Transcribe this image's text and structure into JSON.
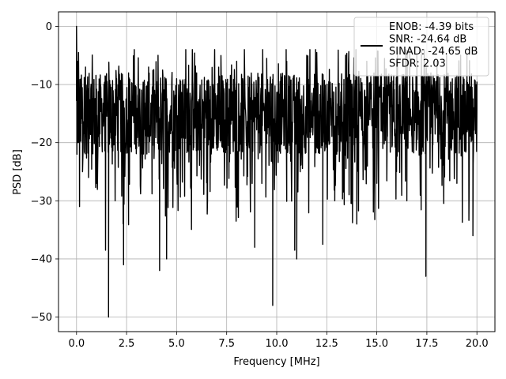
{
  "chart_data": {
    "type": "line",
    "xlabel": "Frequency [MHz]",
    "ylabel": "PSD [dB]",
    "xlim": [
      -0.9,
      20.9
    ],
    "ylim": [
      -52.5,
      2.5
    ],
    "x_ticks": [
      0.0,
      2.5,
      5.0,
      7.5,
      10.0,
      12.5,
      15.0,
      17.5,
      20.0
    ],
    "x_tick_labels": [
      "0.0",
      "2.5",
      "5.0",
      "7.5",
      "10.0",
      "12.5",
      "15.0",
      "17.5",
      "20.0"
    ],
    "y_ticks": [
      0,
      -10,
      -20,
      -30,
      -40,
      -50
    ],
    "y_tick_labels": [
      "0",
      "−10",
      "−20",
      "−30",
      "−40",
      "−50"
    ],
    "grid": true,
    "legend_position": "top-right",
    "series": [
      {
        "name": "ENOB: -4.39 bits\nSNR: -24.64 dB\nSINAD: -24.65 dB\nSFDR: 2.03",
        "color": "#000000",
        "noise_floor_db": -15,
        "x": [
          0.0,
          0.02,
          0.05,
          0.08,
          0.1,
          0.15,
          0.22,
          0.3,
          0.45,
          0.6,
          0.8,
          1.0,
          1.2,
          1.45,
          1.6,
          2.0,
          2.35,
          2.6,
          3.0,
          3.6,
          4.15,
          4.3,
          4.5,
          5.0,
          6.0,
          7.0,
          8.0,
          8.9,
          9.5,
          9.8,
          10.5,
          10.9,
          11.0,
          12.0,
          12.3,
          12.9,
          13.5,
          14.0,
          14.5,
          15.0,
          16.0,
          16.5,
          17.0,
          17.45,
          18.0,
          19.0,
          19.5,
          19.8,
          20.0
        ],
        "y": [
          0.0,
          -22.0,
          -6.0,
          -20.0,
          -4.5,
          -31.0,
          -9.0,
          -25.0,
          -7.0,
          -26.0,
          -11.0,
          -27.0,
          -10.0,
          -38.5,
          -50.0,
          -9.0,
          -41.0,
          -8.0,
          -21.0,
          -7.0,
          -42.0,
          -7.5,
          -40.0,
          -9.0,
          -8.0,
          -21.0,
          -6.0,
          -38.0,
          -5.5,
          -48.0,
          -6.0,
          -38.5,
          -40.0,
          -4.5,
          -37.5,
          -30.0,
          -8.0,
          -34.0,
          -6.0,
          -27.0,
          -5.5,
          -30.0,
          -5.0,
          -43.0,
          -6.0,
          -27.0,
          -4.8,
          -36.0,
          -9.5
        ]
      }
    ]
  }
}
